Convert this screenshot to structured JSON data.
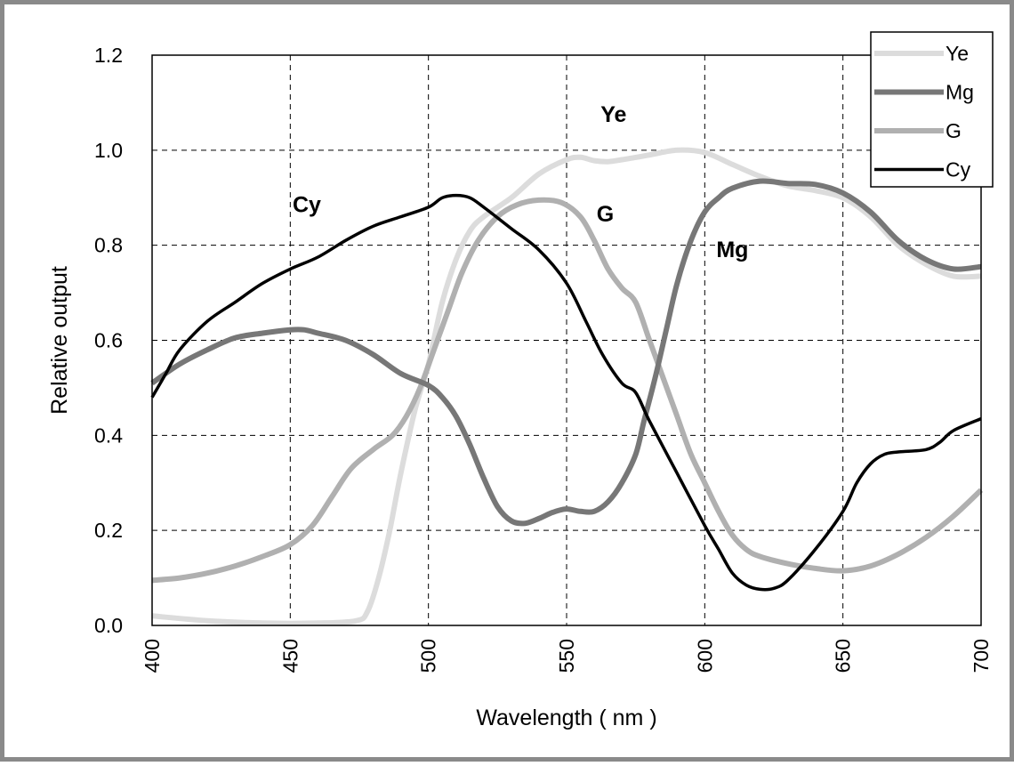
{
  "chart_data": {
    "type": "line",
    "title": "",
    "xlabel": "Wavelength ( nm )",
    "ylabel": "Relative output",
    "xlim": [
      400,
      700
    ],
    "ylim": [
      0,
      1.2
    ],
    "xticks": [
      400,
      450,
      500,
      550,
      600,
      650,
      700
    ],
    "yticks": [
      "0.0",
      "0.2",
      "0.4",
      "0.6",
      "0.8",
      "1.0",
      "1.2"
    ],
    "grid": true,
    "legend_position": "top-right",
    "series": [
      {
        "name": "Ye",
        "color": "#dcdcdc",
        "width": 6,
        "points": [
          [
            400,
            0.02
          ],
          [
            420,
            0.01
          ],
          [
            440,
            0.005
          ],
          [
            460,
            0.005
          ],
          [
            474,
            0.01
          ],
          [
            478,
            0.03
          ],
          [
            482,
            0.1
          ],
          [
            486,
            0.2
          ],
          [
            490,
            0.32
          ],
          [
            495,
            0.45
          ],
          [
            500,
            0.55
          ],
          [
            505,
            0.68
          ],
          [
            510,
            0.77
          ],
          [
            515,
            0.83
          ],
          [
            520,
            0.86
          ],
          [
            530,
            0.9
          ],
          [
            540,
            0.95
          ],
          [
            550,
            0.98
          ],
          [
            555,
            0.985
          ],
          [
            560,
            0.978
          ],
          [
            565,
            0.976
          ],
          [
            570,
            0.98
          ],
          [
            580,
            0.99
          ],
          [
            590,
            1.0
          ],
          [
            600,
            0.995
          ],
          [
            610,
            0.97
          ],
          [
            620,
            0.945
          ],
          [
            630,
            0.925
          ],
          [
            640,
            0.915
          ],
          [
            650,
            0.9
          ],
          [
            660,
            0.86
          ],
          [
            670,
            0.8
          ],
          [
            680,
            0.76
          ],
          [
            690,
            0.735
          ],
          [
            700,
            0.735
          ]
        ]
      },
      {
        "name": "Mg",
        "color": "#777777",
        "width": 6,
        "points": [
          [
            400,
            0.51
          ],
          [
            410,
            0.55
          ],
          [
            420,
            0.58
          ],
          [
            430,
            0.605
          ],
          [
            440,
            0.615
          ],
          [
            450,
            0.622
          ],
          [
            455,
            0.622
          ],
          [
            460,
            0.615
          ],
          [
            470,
            0.6
          ],
          [
            480,
            0.57
          ],
          [
            490,
            0.53
          ],
          [
            500,
            0.505
          ],
          [
            505,
            0.48
          ],
          [
            510,
            0.44
          ],
          [
            515,
            0.38
          ],
          [
            520,
            0.31
          ],
          [
            525,
            0.25
          ],
          [
            530,
            0.22
          ],
          [
            535,
            0.215
          ],
          [
            540,
            0.225
          ],
          [
            545,
            0.238
          ],
          [
            550,
            0.245
          ],
          [
            555,
            0.24
          ],
          [
            560,
            0.24
          ],
          [
            565,
            0.26
          ],
          [
            570,
            0.3
          ],
          [
            575,
            0.36
          ],
          [
            578,
            0.43
          ],
          [
            582,
            0.52
          ],
          [
            586,
            0.62
          ],
          [
            590,
            0.72
          ],
          [
            595,
            0.81
          ],
          [
            600,
            0.87
          ],
          [
            605,
            0.9
          ],
          [
            610,
            0.92
          ],
          [
            620,
            0.935
          ],
          [
            630,
            0.93
          ],
          [
            640,
            0.928
          ],
          [
            650,
            0.91
          ],
          [
            660,
            0.87
          ],
          [
            670,
            0.81
          ],
          [
            680,
            0.77
          ],
          [
            690,
            0.75
          ],
          [
            700,
            0.755
          ]
        ]
      },
      {
        "name": "G",
        "color": "#b0b0b0",
        "width": 6,
        "points": [
          [
            400,
            0.095
          ],
          [
            410,
            0.1
          ],
          [
            420,
            0.11
          ],
          [
            430,
            0.125
          ],
          [
            440,
            0.145
          ],
          [
            450,
            0.17
          ],
          [
            458,
            0.21
          ],
          [
            465,
            0.27
          ],
          [
            472,
            0.33
          ],
          [
            480,
            0.37
          ],
          [
            487,
            0.4
          ],
          [
            492,
            0.44
          ],
          [
            497,
            0.5
          ],
          [
            502,
            0.58
          ],
          [
            507,
            0.66
          ],
          [
            512,
            0.74
          ],
          [
            518,
            0.81
          ],
          [
            525,
            0.86
          ],
          [
            532,
            0.885
          ],
          [
            540,
            0.895
          ],
          [
            548,
            0.89
          ],
          [
            555,
            0.86
          ],
          [
            560,
            0.81
          ],
          [
            565,
            0.75
          ],
          [
            570,
            0.71
          ],
          [
            575,
            0.68
          ],
          [
            580,
            0.6
          ],
          [
            585,
            0.52
          ],
          [
            590,
            0.44
          ],
          [
            595,
            0.36
          ],
          [
            600,
            0.3
          ],
          [
            605,
            0.24
          ],
          [
            610,
            0.19
          ],
          [
            615,
            0.16
          ],
          [
            620,
            0.145
          ],
          [
            630,
            0.13
          ],
          [
            640,
            0.12
          ],
          [
            650,
            0.115
          ],
          [
            660,
            0.125
          ],
          [
            670,
            0.15
          ],
          [
            680,
            0.185
          ],
          [
            690,
            0.23
          ],
          [
            700,
            0.285
          ]
        ]
      },
      {
        "name": "Cy",
        "color": "#000000",
        "width": 3.5,
        "points": [
          [
            400,
            0.48
          ],
          [
            405,
            0.53
          ],
          [
            410,
            0.58
          ],
          [
            420,
            0.64
          ],
          [
            430,
            0.68
          ],
          [
            440,
            0.72
          ],
          [
            450,
            0.75
          ],
          [
            460,
            0.775
          ],
          [
            470,
            0.81
          ],
          [
            480,
            0.84
          ],
          [
            490,
            0.86
          ],
          [
            500,
            0.88
          ],
          [
            505,
            0.9
          ],
          [
            510,
            0.905
          ],
          [
            515,
            0.9
          ],
          [
            520,
            0.88
          ],
          [
            530,
            0.835
          ],
          [
            540,
            0.79
          ],
          [
            550,
            0.72
          ],
          [
            557,
            0.64
          ],
          [
            563,
            0.57
          ],
          [
            570,
            0.51
          ],
          [
            575,
            0.49
          ],
          [
            580,
            0.43
          ],
          [
            590,
            0.32
          ],
          [
            600,
            0.21
          ],
          [
            605,
            0.16
          ],
          [
            610,
            0.11
          ],
          [
            615,
            0.085
          ],
          [
            620,
            0.076
          ],
          [
            625,
            0.078
          ],
          [
            630,
            0.095
          ],
          [
            640,
            0.16
          ],
          [
            650,
            0.24
          ],
          [
            655,
            0.3
          ],
          [
            660,
            0.34
          ],
          [
            665,
            0.36
          ],
          [
            670,
            0.365
          ],
          [
            680,
            0.37
          ],
          [
            685,
            0.385
          ],
          [
            690,
            0.41
          ],
          [
            700,
            0.435
          ]
        ]
      }
    ],
    "annotations": [
      {
        "text": "Cy",
        "x": 456,
        "y": 0.87
      },
      {
        "text": "Ye",
        "x": 567,
        "y": 1.06
      },
      {
        "text": "G",
        "x": 564,
        "y": 0.85
      },
      {
        "text": "Mg",
        "x": 610,
        "y": 0.775
      }
    ]
  }
}
